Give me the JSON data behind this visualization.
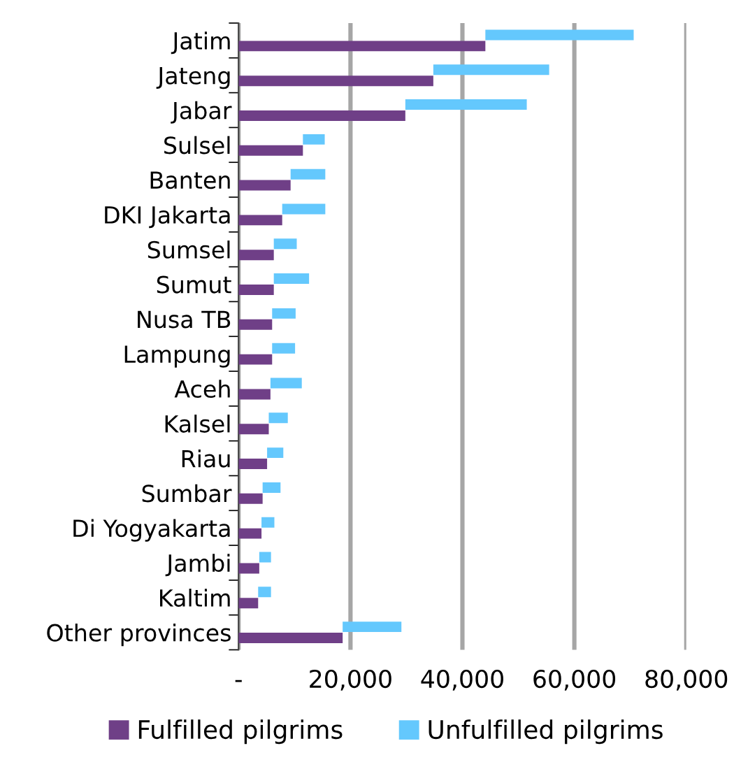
{
  "chart_data": {
    "type": "bar",
    "orientation": "horizontal",
    "stacked": true,
    "categories": [
      "Jatim",
      "Jateng",
      "Jabar",
      "Sulsel",
      "Banten",
      "DKI Jakarta",
      "Sumsel",
      "Sumut",
      "Nusa TB",
      "Lampung",
      "Aceh",
      "Kalsel",
      "Riau",
      "Sumbar",
      "Di Yogyakarta",
      "Jambi",
      "Kaltim",
      "Other provinces"
    ],
    "series": [
      {
        "name": "Fulfilled pilgrims",
        "color": "#6f3f87",
        "values": [
          44100,
          34800,
          29800,
          11500,
          9300,
          7800,
          6300,
          6300,
          6000,
          6000,
          5700,
          5400,
          5100,
          4300,
          4100,
          3700,
          3500,
          18600
        ]
      },
      {
        "name": "Unfulfilled pilgrims",
        "color": "#64c8fd",
        "values": [
          26500,
          20700,
          21700,
          3900,
          6200,
          7700,
          4100,
          6300,
          4200,
          4100,
          5600,
          3400,
          2900,
          3200,
          2300,
          2100,
          2300,
          10500
        ]
      }
    ],
    "xlim": [
      0,
      80000
    ],
    "xticks": [
      {
        "value": 0,
        "label": "-"
      },
      {
        "value": 20000,
        "label": "20,000"
      },
      {
        "value": 40000,
        "label": "40,000"
      },
      {
        "value": 60000,
        "label": "60,000"
      },
      {
        "value": 80000,
        "label": "80,000"
      }
    ],
    "grid": "x",
    "legend": "bottom"
  }
}
